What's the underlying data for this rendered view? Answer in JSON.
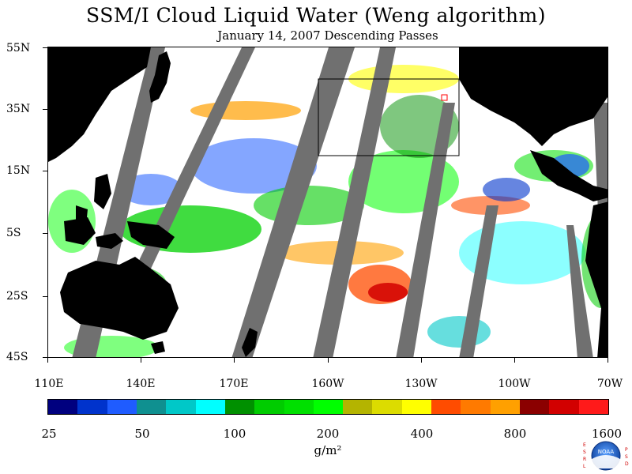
{
  "title": "SSM/I Cloud Liquid Water (Weng algorithm)",
  "subtitle": "January 14, 2007  Descending Passes",
  "lat_labels": [
    "55N",
    "35N",
    "15N",
    "5S",
    "25S",
    "45S"
  ],
  "lon_labels": [
    "110E",
    "140E",
    "170E",
    "160W",
    "130W",
    "100W",
    "70W"
  ],
  "colorbar": {
    "colors": [
      "#00007f",
      "#0033cc",
      "#1f5cff",
      "#0f9090",
      "#00c8c8",
      "#00ffff",
      "#009000",
      "#00cc00",
      "#00e000",
      "#00ff00",
      "#b4b400",
      "#dcdc00",
      "#ffff00",
      "#ff4c00",
      "#ff7a00",
      "#ffa000",
      "#8b0000",
      "#d20000",
      "#ff1a1a"
    ],
    "tick_labels": [
      "25",
      "50",
      "100",
      "200",
      "400",
      "800",
      "1600"
    ],
    "units": "g/m²"
  },
  "logo": {
    "name": "noaa-logo",
    "text": "NOAA",
    "left_letters": "ESRL",
    "right_letters": "PSD"
  }
}
